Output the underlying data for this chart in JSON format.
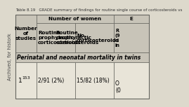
{
  "title": "Table 8.19   GRADE summary of findings for routine single course of corticosteroids vs",
  "bg_color": "#ddd9cc",
  "header_bg": "#c8c4b8",
  "cell_bg": "#e8e4d8",
  "border_color": "#666660",
  "title_color": "#333333",
  "title_fontsize": 4.0,
  "header_fontsize": 5.2,
  "data_fontsize": 5.5,
  "section_fontsize": 5.5,
  "side_text": "Archived, for histork",
  "side_text_fontsize": 4.8,
  "col0_header": "Number\nof\nstudies",
  "col1_header_top": "Number of women",
  "col1_header_bot": "Routine\nprophylactic\ncorticosteroids",
  "col2_header_bot": "No\ncorticosteroids",
  "col3_header_top": "E",
  "col3_header_bot": "R\n(9\nci\nin",
  "section_label": "Perinatal and neonatal mortality in twins",
  "data_col0_main": "1",
  "data_col0_sup": "153",
  "data_col1": "2/91 (2%)",
  "data_col2": "15/82 (18%)",
  "data_col3": "O\n(0"
}
